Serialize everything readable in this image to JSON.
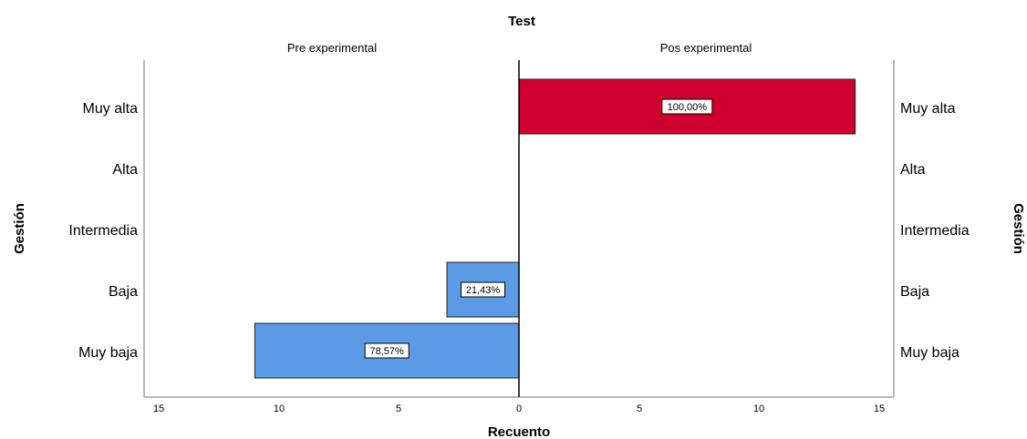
{
  "chart_data": {
    "type": "bar",
    "title": "Test",
    "xlabel": "Recuento",
    "ylabel": "Gestión",
    "panels": [
      {
        "name": "Pre experimental",
        "direction": "left"
      },
      {
        "name": "Pos experimental",
        "direction": "right"
      }
    ],
    "categories": [
      "Muy alta",
      "Alta",
      "Intermedia",
      "Baja",
      "Muy baja"
    ],
    "series": [
      {
        "name": "Pre experimental",
        "color": "#5b9be6",
        "values": [
          0,
          0,
          0,
          3,
          11
        ],
        "labels": [
          "",
          "",
          "",
          "21,43%",
          "78,57%"
        ]
      },
      {
        "name": "Pos experimental",
        "color": "#d0002e",
        "values": [
          14,
          0,
          0,
          0,
          0
        ],
        "labels": [
          "100,00%",
          "",
          "",
          "",
          ""
        ]
      }
    ],
    "xlim": [
      0,
      15
    ],
    "xticks": [
      {
        "value": 15,
        "label": "15"
      },
      {
        "value": 10,
        "label": "10"
      },
      {
        "value": 5,
        "label": "5"
      },
      {
        "value": 0,
        "label": "0"
      }
    ],
    "xticks_right": [
      {
        "value": 5,
        "label": "5"
      },
      {
        "value": 10,
        "label": "10"
      },
      {
        "value": 15,
        "label": "15"
      }
    ],
    "grid": false
  }
}
